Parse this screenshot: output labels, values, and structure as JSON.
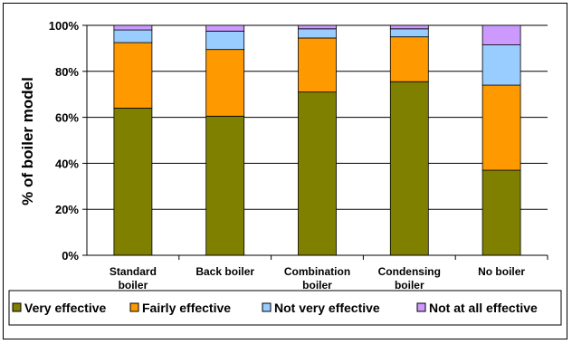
{
  "chart_data": {
    "type": "bar",
    "stacked": true,
    "title": "",
    "xlabel": "",
    "ylabel": "% of boiler model",
    "ylim": [
      0,
      100
    ],
    "yticks": [
      "0%",
      "20%",
      "40%",
      "60%",
      "80%",
      "100%"
    ],
    "ytick_values": [
      0,
      20,
      40,
      60,
      80,
      100
    ],
    "categories": [
      [
        "Standard",
        "boiler"
      ],
      [
        "Back boiler"
      ],
      [
        "Combination",
        "boiler"
      ],
      [
        "Condensing",
        "boiler"
      ],
      [
        "No boiler"
      ]
    ],
    "series": [
      {
        "name": "Very effective",
        "color": "#808000",
        "values": [
          64,
          60.5,
          71,
          75.5,
          37
        ]
      },
      {
        "name": "Fairly effective",
        "color": "#FF9900",
        "values": [
          28.5,
          29,
          23.5,
          19.5,
          37
        ]
      },
      {
        "name": "Not very effective",
        "color": "#99CCFF",
        "values": [
          5.5,
          8,
          4,
          3.5,
          17.5
        ]
      },
      {
        "name": "Not at all effective",
        "color": "#CC99FF",
        "values": [
          2,
          2.5,
          1.5,
          1.5,
          8.5
        ]
      }
    ],
    "grid": true,
    "legend_position": "bottom"
  }
}
